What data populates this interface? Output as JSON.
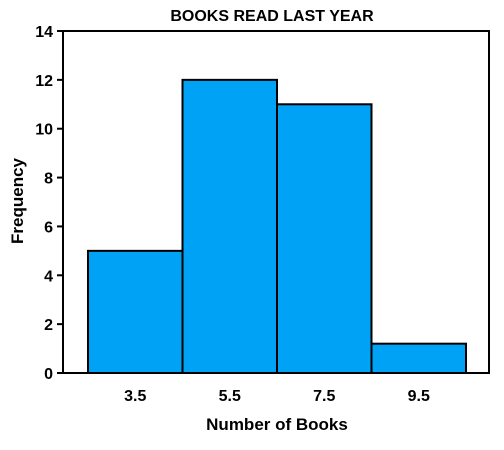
{
  "chart_data": {
    "type": "bar",
    "title": "BOOKS READ LAST YEAR",
    "xlabel": "Number of Books",
    "ylabel": "Frequency",
    "categories": [
      "3.5",
      "5.5",
      "7.5",
      "9.5"
    ],
    "values": [
      5,
      12,
      11,
      1.2
    ],
    "ylim": [
      0,
      14
    ],
    "yticks": [
      "0",
      "2",
      "4",
      "6",
      "8",
      "10",
      "12",
      "14"
    ],
    "grid": false,
    "legend": "none",
    "colors": {
      "bar_fill": "#00A2F5",
      "bar_stroke": "#000000",
      "axis": "#000000",
      "text": "#000000"
    }
  }
}
